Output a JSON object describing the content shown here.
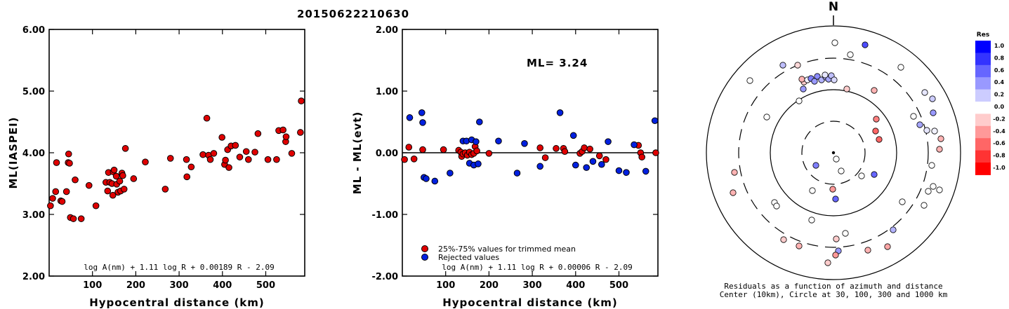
{
  "title": "20150622210630",
  "chart_data": [
    {
      "type": "scatter",
      "ylabel": "ML(IASPEI)",
      "xlabel": "Hypocentral distance (km)",
      "xlim": [
        0,
        590
      ],
      "ylim": [
        2.0,
        6.0
      ],
      "xticks": [
        "100",
        "200",
        "300",
        "400",
        "500"
      ],
      "yticks": [
        "2.00",
        "3.00",
        "4.00",
        "5.00",
        "6.00"
      ],
      "formula": "log A(nm) + 1.11 log R + 0.00189 R - 2.09",
      "marker_color": "#e00000",
      "points": [
        [
          3,
          3.14
        ],
        [
          8,
          3.26
        ],
        [
          15,
          3.37
        ],
        [
          17,
          3.84
        ],
        [
          27,
          3.22
        ],
        [
          30,
          3.21
        ],
        [
          40,
          3.37
        ],
        [
          44,
          3.84
        ],
        [
          45,
          3.98
        ],
        [
          47,
          3.83
        ],
        [
          49,
          2.95
        ],
        [
          56,
          2.93
        ],
        [
          60,
          3.56
        ],
        [
          74,
          2.93
        ],
        [
          92,
          3.47
        ],
        [
          108,
          3.14
        ],
        [
          131,
          3.52
        ],
        [
          135,
          3.38
        ],
        [
          137,
          3.68
        ],
        [
          140,
          3.52
        ],
        [
          145,
          3.5
        ],
        [
          147,
          3.31
        ],
        [
          148,
          3.69
        ],
        [
          150,
          3.72
        ],
        [
          155,
          3.62
        ],
        [
          156,
          3.49
        ],
        [
          159,
          3.36
        ],
        [
          163,
          3.54
        ],
        [
          165,
          3.38
        ],
        [
          168,
          3.67
        ],
        [
          170,
          3.63
        ],
        [
          173,
          3.41
        ],
        [
          176,
          4.07
        ],
        [
          195,
          3.58
        ],
        [
          222,
          3.85
        ],
        [
          268,
          3.41
        ],
        [
          280,
          3.91
        ],
        [
          317,
          3.89
        ],
        [
          318,
          3.61
        ],
        [
          328,
          3.77
        ],
        [
          355,
          3.97
        ],
        [
          364,
          4.56
        ],
        [
          368,
          3.96
        ],
        [
          372,
          3.89
        ],
        [
          380,
          3.99
        ],
        [
          399,
          4.25
        ],
        [
          405,
          3.81
        ],
        [
          407,
          3.88
        ],
        [
          412,
          4.05
        ],
        [
          415,
          3.76
        ],
        [
          420,
          4.11
        ],
        [
          430,
          4.12
        ],
        [
          440,
          3.93
        ],
        [
          455,
          4.02
        ],
        [
          460,
          3.89
        ],
        [
          475,
          4.01
        ],
        [
          482,
          4.31
        ],
        [
          505,
          3.89
        ],
        [
          525,
          3.89
        ],
        [
          530,
          4.36
        ],
        [
          540,
          4.37
        ],
        [
          546,
          4.18
        ],
        [
          547,
          4.26
        ],
        [
          560,
          3.99
        ],
        [
          580,
          4.33
        ],
        [
          582,
          4.84
        ]
      ]
    },
    {
      "type": "scatter",
      "ylabel": "ML - ML(evt)",
      "xlabel": "Hypocentral distance (km)",
      "xlim": [
        0,
        590
      ],
      "ylim": [
        -2.0,
        2.0
      ],
      "xticks": [
        "100",
        "200",
        "300",
        "400",
        "500"
      ],
      "yticks": [
        "-2.00",
        "-1.00",
        "0.00",
        "1.00",
        "2.00"
      ],
      "annotation": "ML= 3.24",
      "formula": "log A(nm) + 1.11 log R + 0.00006 R - 2.09",
      "legend": [
        {
          "label": "25%-75% values for trimmed mean",
          "color": "#e00000"
        },
        {
          "label": "Rejected values",
          "color": "#0020e0"
        }
      ],
      "series": [
        {
          "name": "25%-75% values for trimmed mean",
          "color": "#e00000",
          "points": [
            [
              5,
              -0.11
            ],
            [
              15,
              0.09
            ],
            [
              27,
              -0.1
            ],
            [
              47,
              0.05
            ],
            [
              95,
              0.05
            ],
            [
              130,
              0.04
            ],
            [
              135,
              0.01
            ],
            [
              137,
              -0.06
            ],
            [
              140,
              -0.02
            ],
            [
              145,
              0.0
            ],
            [
              150,
              -0.04
            ],
            [
              155,
              0.01
            ],
            [
              160,
              -0.03
            ],
            [
              165,
              -0.01
            ],
            [
              168,
              0.1
            ],
            [
              172,
              0.03
            ],
            [
              200,
              -0.01
            ],
            [
              318,
              0.08
            ],
            [
              330,
              -0.08
            ],
            [
              355,
              0.07
            ],
            [
              372,
              0.07
            ],
            [
              375,
              0.02
            ],
            [
              410,
              -0.01
            ],
            [
              415,
              0.02
            ],
            [
              420,
              0.08
            ],
            [
              433,
              0.06
            ],
            [
              455,
              -0.05
            ],
            [
              470,
              -0.11
            ],
            [
              545,
              0.12
            ],
            [
              550,
              0.0
            ],
            [
              553,
              -0.07
            ],
            [
              585,
              0.0
            ]
          ]
        },
        {
          "name": "Rejected values",
          "color": "#0020e0",
          "points": [
            [
              17,
              0.57
            ],
            [
              45,
              0.65
            ],
            [
              47,
              0.49
            ],
            [
              50,
              -0.4
            ],
            [
              55,
              -0.42
            ],
            [
              75,
              -0.46
            ],
            [
              110,
              -0.33
            ],
            [
              140,
              0.19
            ],
            [
              148,
              0.19
            ],
            [
              155,
              -0.17
            ],
            [
              160,
              0.21
            ],
            [
              165,
              -0.2
            ],
            [
              170,
              0.18
            ],
            [
              175,
              -0.18
            ],
            [
              178,
              0.5
            ],
            [
              222,
              0.19
            ],
            [
              265,
              -0.33
            ],
            [
              282,
              0.15
            ],
            [
              318,
              -0.22
            ],
            [
              364,
              0.65
            ],
            [
              395,
              0.28
            ],
            [
              400,
              -0.2
            ],
            [
              425,
              -0.24
            ],
            [
              440,
              -0.14
            ],
            [
              460,
              -0.19
            ],
            [
              475,
              0.18
            ],
            [
              500,
              -0.29
            ],
            [
              517,
              -0.32
            ],
            [
              535,
              0.13
            ],
            [
              562,
              -0.3
            ],
            [
              583,
              0.52
            ]
          ]
        }
      ]
    }
  ],
  "polar": {
    "north_label": "N",
    "caption_line1": "Residuals as a function of azimuth and distance",
    "caption_line2": "Center (10km), Circle at 30, 100, 300 and 1000 km",
    "colorbar_title": "Res",
    "colorbar_ticks": [
      "1.0",
      "0.8",
      "0.6",
      "0.4",
      "0.2",
      "0.0",
      "-0.2",
      "-0.4",
      "-0.6",
      "-0.8",
      "-1.0"
    ]
  }
}
